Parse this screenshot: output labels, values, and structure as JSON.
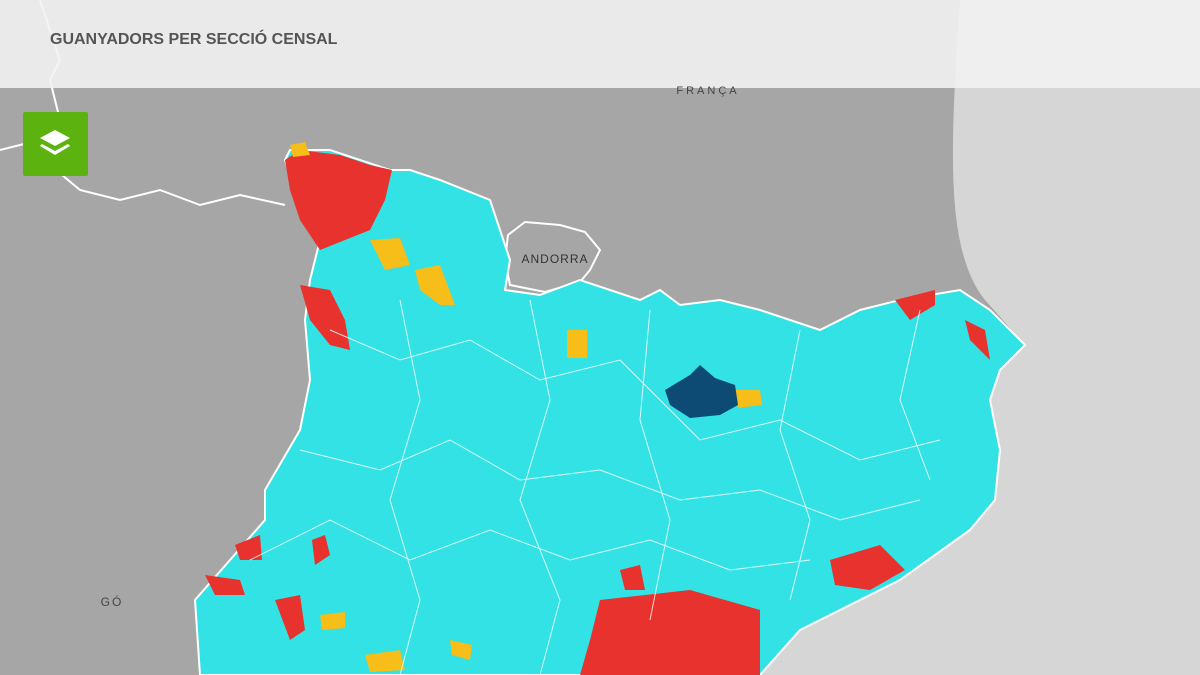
{
  "header": {
    "title": "GUANYADORS PER SECCIÓ CENSAL"
  },
  "map": {
    "labels": {
      "france": "FRANÇA",
      "andorra": "ANDORRA",
      "aragon": "GÓ"
    }
  }
}
